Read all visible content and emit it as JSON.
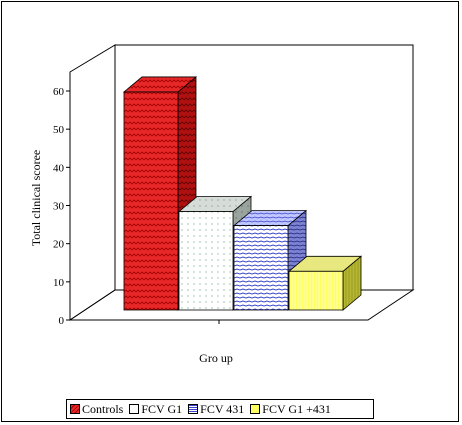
{
  "chart_data": {
    "type": "bar",
    "title": "",
    "xlabel": "Gro up",
    "ylabel": "Total clinical scoree",
    "ylim": [
      0,
      60
    ],
    "yticks": [
      "0",
      "10",
      "20",
      "30",
      "40",
      "50",
      "60"
    ],
    "categories": [
      "Controls",
      "FCV G1",
      "FCV 431",
      "FCV G1  +431"
    ],
    "values": [
      62,
      28,
      24,
      11
    ],
    "colors": [
      "#e02020",
      "#ffffff",
      "#aab0ff",
      "#ffff80"
    ],
    "grid": false,
    "legend_position": "bottom",
    "legend": [
      "Controls",
      "FCV G1",
      "FCV 431",
      "FCV G1  +431"
    ]
  }
}
